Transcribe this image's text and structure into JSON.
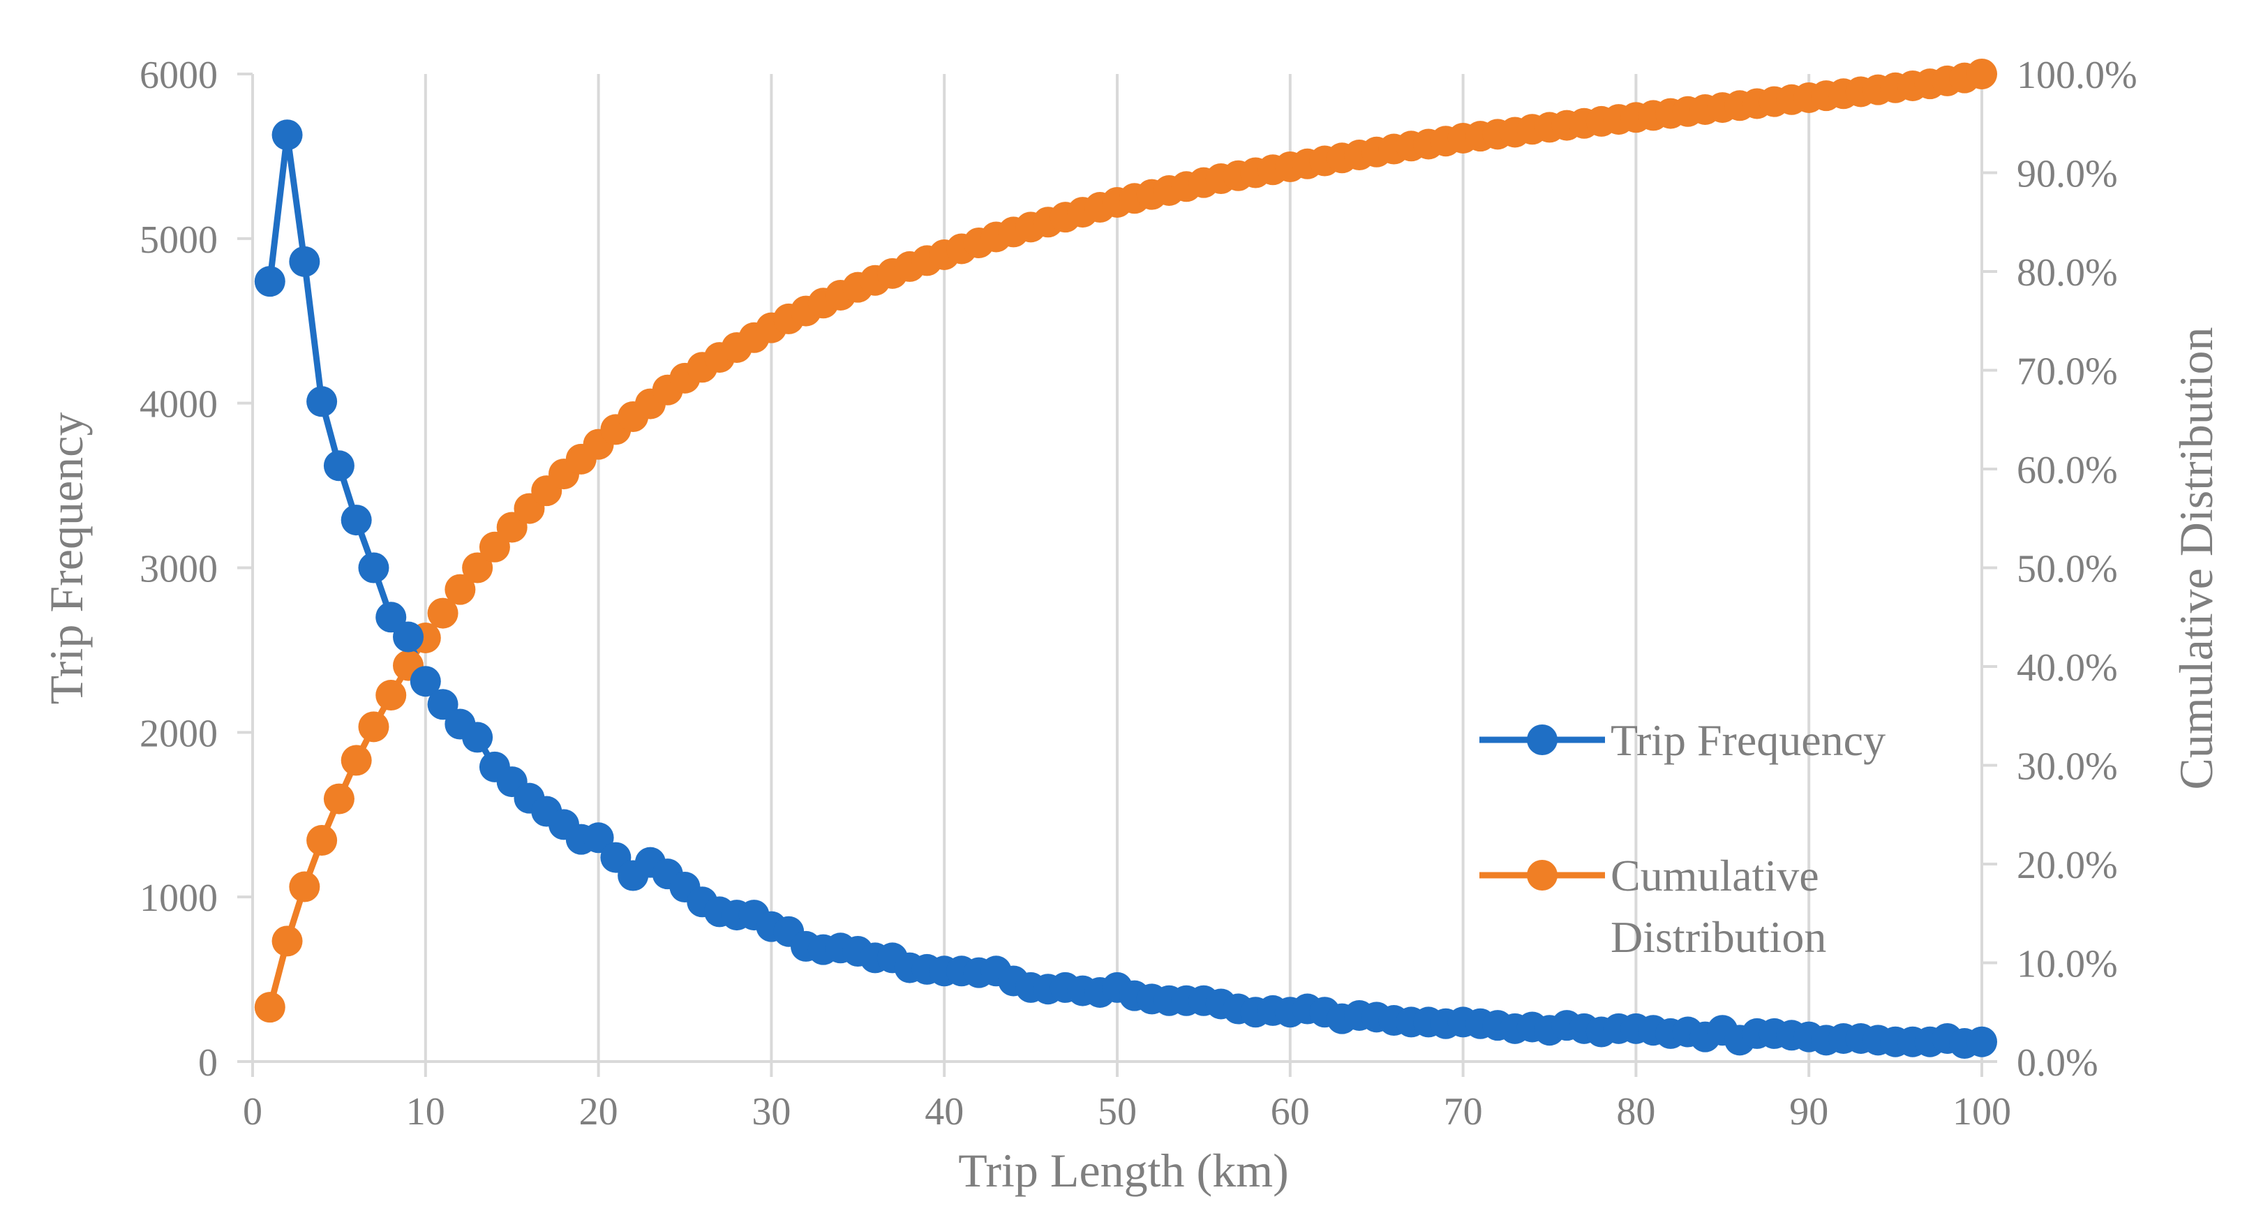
{
  "chart_data": {
    "type": "line",
    "xlabel": "Trip Length (km)",
    "ylabel": "Trip Frequency",
    "y2label": "Cumulative Distribution",
    "xlim": [
      0,
      100
    ],
    "ylim": [
      0,
      6000
    ],
    "y2lim": [
      0,
      1
    ],
    "x_ticks": [
      "0",
      "10",
      "20",
      "30",
      "40",
      "50",
      "60",
      "70",
      "80",
      "90",
      "100"
    ],
    "y_ticks": [
      "0",
      "1000",
      "2000",
      "3000",
      "4000",
      "5000",
      "6000"
    ],
    "y2_ticks": [
      "0.0%",
      "10.0%",
      "20.0%",
      "30.0%",
      "40.0%",
      "50.0%",
      "60.0%",
      "70.0%",
      "80.0%",
      "90.0%",
      "100.0%"
    ],
    "grid": "vertical",
    "legend_position": "right",
    "x": [
      1,
      2,
      3,
      4,
      5,
      6,
      7,
      8,
      9,
      10,
      11,
      12,
      13,
      14,
      15,
      16,
      17,
      18,
      19,
      20,
      21,
      22,
      23,
      24,
      25,
      26,
      27,
      28,
      29,
      30,
      31,
      32,
      33,
      34,
      35,
      36,
      37,
      38,
      39,
      40,
      41,
      42,
      43,
      44,
      45,
      46,
      47,
      48,
      49,
      50,
      51,
      52,
      53,
      54,
      55,
      56,
      57,
      58,
      59,
      60,
      61,
      62,
      63,
      64,
      65,
      66,
      67,
      68,
      69,
      70,
      71,
      72,
      73,
      74,
      75,
      76,
      77,
      78,
      79,
      80,
      81,
      82,
      83,
      84,
      85,
      86,
      87,
      88,
      89,
      90,
      91,
      92,
      93,
      94,
      95,
      96,
      97,
      98,
      99,
      100
    ],
    "series": [
      {
        "name": "Trip Frequency",
        "axis": "left",
        "color": "#1f6fc5",
        "values": [
          4740,
          5630,
          4860,
          4010,
          3620,
          3290,
          3000,
          2700,
          2580,
          2310,
          2170,
          2050,
          1970,
          1790,
          1700,
          1600,
          1520,
          1440,
          1350,
          1360,
          1240,
          1130,
          1210,
          1140,
          1060,
          970,
          910,
          890,
          890,
          820,
          790,
          700,
          680,
          690,
          670,
          630,
          630,
          570,
          560,
          550,
          550,
          540,
          550,
          490,
          450,
          440,
          450,
          430,
          420,
          450,
          400,
          380,
          370,
          370,
          370,
          350,
          320,
          300,
          310,
          300,
          320,
          300,
          260,
          280,
          270,
          250,
          240,
          240,
          230,
          240,
          230,
          220,
          200,
          210,
          190,
          220,
          200,
          180,
          200,
          200,
          190,
          170,
          180,
          150,
          190,
          130,
          170,
          170,
          160,
          150,
          130,
          140,
          140,
          130,
          120,
          120,
          120,
          140,
          110,
          120
        ]
      },
      {
        "name": "Cumulative Distribution",
        "axis": "right",
        "color": "#f07f25",
        "values": [
          0.055,
          0.122,
          0.177,
          0.224,
          0.266,
          0.305,
          0.339,
          0.371,
          0.401,
          0.429,
          0.454,
          0.478,
          0.5,
          0.521,
          0.541,
          0.56,
          0.578,
          0.595,
          0.61,
          0.625,
          0.64,
          0.653,
          0.666,
          0.68,
          0.692,
          0.703,
          0.713,
          0.723,
          0.733,
          0.743,
          0.752,
          0.76,
          0.768,
          0.776,
          0.784,
          0.791,
          0.798,
          0.805,
          0.811,
          0.817,
          0.823,
          0.829,
          0.835,
          0.84,
          0.845,
          0.85,
          0.855,
          0.86,
          0.865,
          0.87,
          0.874,
          0.878,
          0.882,
          0.886,
          0.89,
          0.894,
          0.897,
          0.9,
          0.903,
          0.906,
          0.909,
          0.912,
          0.915,
          0.918,
          0.921,
          0.924,
          0.927,
          0.929,
          0.932,
          0.935,
          0.937,
          0.939,
          0.941,
          0.944,
          0.946,
          0.948,
          0.95,
          0.952,
          0.954,
          0.956,
          0.958,
          0.96,
          0.962,
          0.964,
          0.966,
          0.968,
          0.97,
          0.972,
          0.974,
          0.976,
          0.978,
          0.98,
          0.982,
          0.984,
          0.986,
          0.988,
          0.99,
          0.993,
          0.996,
          1.0
        ]
      }
    ],
    "legend": [
      {
        "label": "Trip Frequency",
        "color": "#1f6fc5"
      },
      {
        "label": "Cumulative Distribution",
        "lines": [
          "Cumulative",
          "Distribution"
        ],
        "color": "#f07f25"
      }
    ],
    "colors": {
      "grid": "#d9d9d9",
      "text": "#7f7f7f"
    }
  }
}
